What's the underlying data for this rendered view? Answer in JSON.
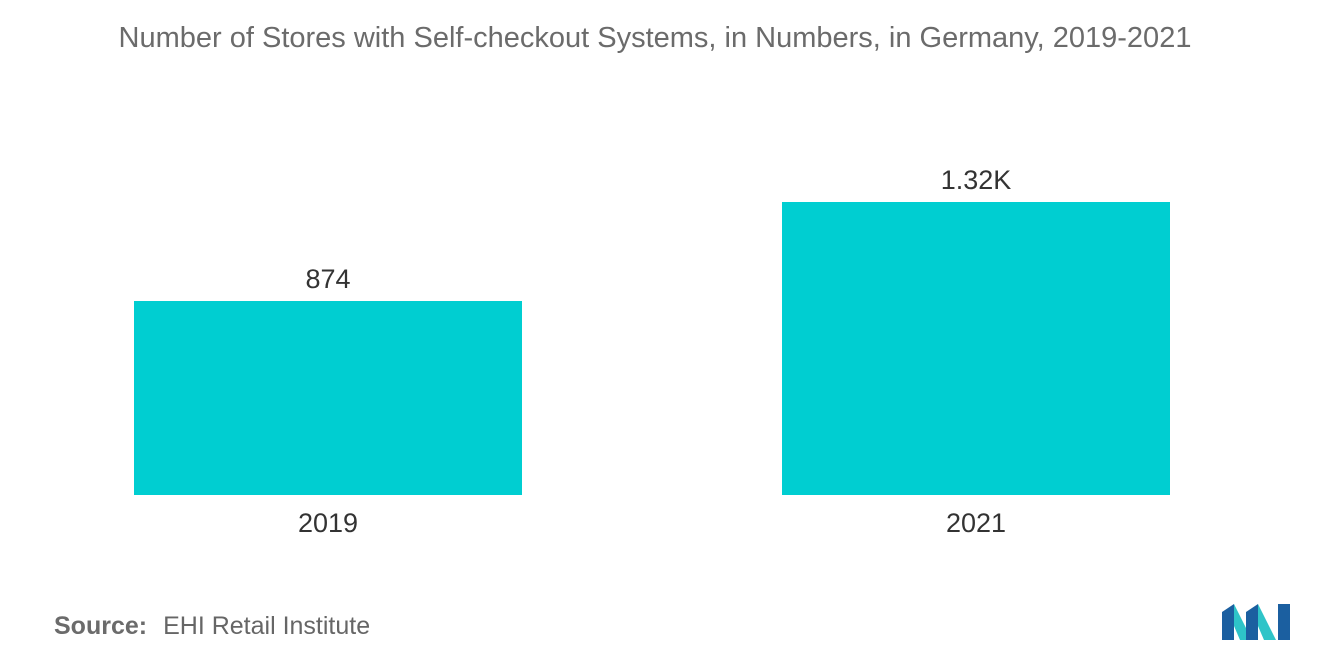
{
  "chart_data": {
    "type": "bar",
    "title": "Number of Stores with Self-checkout Systems, in Numbers, in Germany, 2019-2021",
    "xlabel": "",
    "ylabel": "",
    "categories": [
      "2019",
      "2021"
    ],
    "values": [
      874,
      1320
    ],
    "data_labels": [
      "874",
      "1.32K"
    ],
    "ylim": [
      0,
      1320
    ],
    "grid": false,
    "legend": "none",
    "bar_color": "#00CED1"
  },
  "footer": {
    "source_key": "Source:",
    "source_value": "EHI Retail Institute"
  },
  "logo": {
    "icon": "mordor-intelligence-logo-icon",
    "colors": [
      "#1b5fa0",
      "#2ec4c8"
    ]
  }
}
